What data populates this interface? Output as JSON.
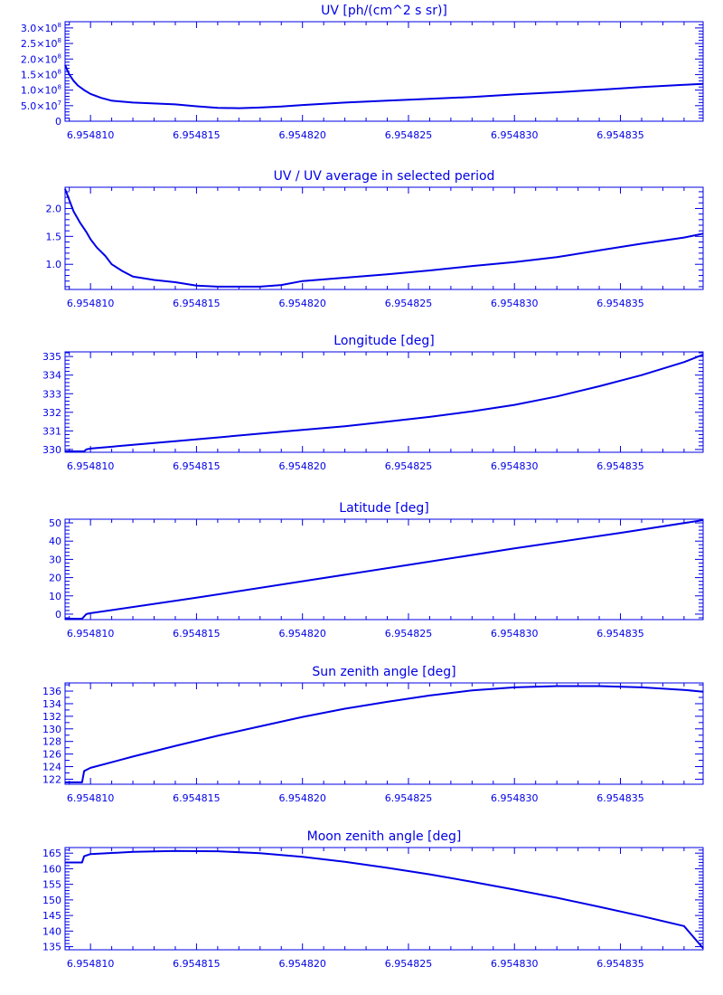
{
  "chart_data": [
    {
      "type": "line",
      "title": "UV [ph/(cm^2 s sr)]",
      "xlim": [
        6.9548088,
        6.9548389
      ],
      "ylim": [
        0,
        320000000
      ],
      "xticks": [
        6.95481,
        6.954815,
        6.95482,
        6.954825,
        6.95483,
        6.954835
      ],
      "xtick_labels": [
        "6.954810",
        "6.954815",
        "6.954820",
        "6.954825",
        "6.954830",
        "6.954835"
      ],
      "yticks": [
        0,
        50000000,
        100000000,
        150000000,
        200000000,
        250000000,
        300000000
      ],
      "ytick_labels": [
        {
          "mantissa": "0",
          "exp": ""
        },
        {
          "mantissa": "5.0×10",
          "exp": "7"
        },
        {
          "mantissa": "1.0×10",
          "exp": "8"
        },
        {
          "mantissa": "1.5×10",
          "exp": "8"
        },
        {
          "mantissa": "2.0×10",
          "exp": "8"
        },
        {
          "mantissa": "2.5×10",
          "exp": "8"
        },
        {
          "mantissa": "3.0×10",
          "exp": "8"
        }
      ],
      "minor_per_major": 5,
      "series": [
        {
          "x": [
            6.9548088,
            6.954809,
            6.9548092,
            6.9548094,
            6.9548097,
            6.95481,
            6.9548105,
            6.954811,
            6.954812,
            6.954813,
            6.954814,
            6.954815,
            6.954816,
            6.954817,
            6.954818,
            6.954819,
            6.95482,
            6.954821,
            6.954822,
            6.954824,
            6.954826,
            6.954828,
            6.95483,
            6.954832,
            6.954834,
            6.954836,
            6.954838,
            6.9548389
          ],
          "y": [
            180000000,
            150000000,
            130000000,
            115000000,
            100000000,
            88000000,
            75000000,
            66000000,
            60000000,
            57000000,
            54000000,
            48000000,
            43000000,
            42000000,
            44000000,
            47000000,
            52000000,
            56000000,
            60000000,
            66000000,
            72000000,
            78000000,
            86000000,
            93000000,
            101000000,
            110000000,
            117000000,
            120000000
          ]
        }
      ]
    },
    {
      "type": "line",
      "title": "UV / UV average in selected period",
      "xlim": [
        6.9548088,
        6.9548389
      ],
      "ylim": [
        0.55,
        2.38
      ],
      "xticks": [
        6.95481,
        6.954815,
        6.95482,
        6.954825,
        6.95483,
        6.954835
      ],
      "xtick_labels": [
        "6.954810",
        "6.954815",
        "6.954820",
        "6.954825",
        "6.954830",
        "6.954835"
      ],
      "yticks": [
        1.0,
        1.5,
        2.0
      ],
      "ytick_labels": [
        {
          "mantissa": "1.0",
          "exp": ""
        },
        {
          "mantissa": "1.5",
          "exp": ""
        },
        {
          "mantissa": "2.0",
          "exp": ""
        }
      ],
      "minor_per_major": 5,
      "series": [
        {
          "x": [
            6.9548088,
            6.954809,
            6.9548092,
            6.9548095,
            6.9548098,
            6.95481,
            6.9548103,
            6.9548107,
            6.954811,
            6.9548115,
            6.954812,
            6.954813,
            6.954814,
            6.954815,
            6.954816,
            6.954817,
            6.954818,
            6.954819,
            6.95482,
            6.954821,
            6.954822,
            6.954824,
            6.954826,
            6.954828,
            6.95483,
            6.954832,
            6.954834,
            6.954836,
            6.954838,
            6.9548389
          ],
          "y": [
            2.35,
            2.15,
            1.95,
            1.75,
            1.58,
            1.45,
            1.3,
            1.15,
            1.0,
            0.88,
            0.78,
            0.72,
            0.68,
            0.62,
            0.6,
            0.6,
            0.6,
            0.63,
            0.7,
            0.73,
            0.76,
            0.82,
            0.89,
            0.97,
            1.04,
            1.13,
            1.25,
            1.37,
            1.48,
            1.55
          ]
        }
      ]
    },
    {
      "type": "line",
      "title": "Longitude [deg]",
      "xlim": [
        6.9548088,
        6.9548389
      ],
      "ylim": [
        329.85,
        335.25
      ],
      "xticks": [
        6.95481,
        6.954815,
        6.95482,
        6.954825,
        6.95483,
        6.954835
      ],
      "xtick_labels": [
        "6.954810",
        "6.954815",
        "6.954820",
        "6.954825",
        "6.954830",
        "6.954835"
      ],
      "yticks": [
        330,
        331,
        332,
        333,
        334,
        335
      ],
      "ytick_labels": [
        {
          "mantissa": "330",
          "exp": ""
        },
        {
          "mantissa": "331",
          "exp": ""
        },
        {
          "mantissa": "332",
          "exp": ""
        },
        {
          "mantissa": "333",
          "exp": ""
        },
        {
          "mantissa": "334",
          "exp": ""
        },
        {
          "mantissa": "335",
          "exp": ""
        }
      ],
      "minor_per_major": 5,
      "series": [
        {
          "x": [
            6.9548088,
            6.9548097,
            6.9548098,
            6.95481,
            6.954812,
            6.954814,
            6.954816,
            6.954818,
            6.95482,
            6.954822,
            6.954824,
            6.954826,
            6.954828,
            6.95483,
            6.954832,
            6.954834,
            6.954836,
            6.954838,
            6.9548389
          ],
          "y": [
            329.9,
            329.9,
            330.0,
            330.05,
            330.25,
            330.45,
            330.65,
            330.85,
            331.05,
            331.25,
            331.5,
            331.75,
            332.05,
            332.4,
            332.85,
            333.4,
            334.0,
            334.7,
            335.1
          ]
        }
      ]
    },
    {
      "type": "line",
      "title": "Latitude [deg]",
      "xlim": [
        6.9548088,
        6.9548389
      ],
      "ylim": [
        -3,
        52
      ],
      "xticks": [
        6.95481,
        6.954815,
        6.95482,
        6.954825,
        6.95483,
        6.954835
      ],
      "xtick_labels": [
        "6.954810",
        "6.954815",
        "6.954820",
        "6.954825",
        "6.954830",
        "6.954835"
      ],
      "yticks": [
        0,
        10,
        20,
        30,
        40,
        50
      ],
      "ytick_labels": [
        {
          "mantissa": "0",
          "exp": ""
        },
        {
          "mantissa": "10",
          "exp": ""
        },
        {
          "mantissa": "20",
          "exp": ""
        },
        {
          "mantissa": "30",
          "exp": ""
        },
        {
          "mantissa": "40",
          "exp": ""
        },
        {
          "mantissa": "50",
          "exp": ""
        }
      ],
      "minor_per_major": 5,
      "series": [
        {
          "x": [
            6.9548088,
            6.9548096,
            6.9548098,
            6.95481,
            6.954815,
            6.95482,
            6.954825,
            6.95483,
            6.954835,
            6.9548389
          ],
          "y": [
            -2.5,
            -2.5,
            0.0,
            0.5,
            9.0,
            18.0,
            27.0,
            36.0,
            44.5,
            51.5
          ]
        }
      ]
    },
    {
      "type": "line",
      "title": "Sun zenith angle [deg]",
      "xlim": [
        6.9548088,
        6.9548389
      ],
      "ylim": [
        121.2,
        137.3
      ],
      "xticks": [
        6.95481,
        6.954815,
        6.95482,
        6.954825,
        6.95483,
        6.954835
      ],
      "xtick_labels": [
        "6.954810",
        "6.954815",
        "6.954820",
        "6.954825",
        "6.954830",
        "6.954835"
      ],
      "yticks": [
        122,
        124,
        126,
        128,
        130,
        132,
        134,
        136
      ],
      "ytick_labels": [
        {
          "mantissa": "122",
          "exp": ""
        },
        {
          "mantissa": "124",
          "exp": ""
        },
        {
          "mantissa": "126",
          "exp": ""
        },
        {
          "mantissa": "128",
          "exp": ""
        },
        {
          "mantissa": "130",
          "exp": ""
        },
        {
          "mantissa": "132",
          "exp": ""
        },
        {
          "mantissa": "134",
          "exp": ""
        },
        {
          "mantissa": "136",
          "exp": ""
        }
      ],
      "minor_per_major": 2,
      "series": [
        {
          "x": [
            6.9548088,
            6.9548096,
            6.9548097,
            6.95481,
            6.954812,
            6.954814,
            6.954816,
            6.954818,
            6.95482,
            6.954822,
            6.954824,
            6.954826,
            6.954828,
            6.95483,
            6.954832,
            6.954834,
            6.954836,
            6.954838,
            6.9548389
          ],
          "y": [
            121.5,
            121.5,
            123.3,
            123.8,
            125.6,
            127.3,
            128.9,
            130.4,
            131.9,
            133.2,
            134.3,
            135.3,
            136.1,
            136.6,
            136.8,
            136.8,
            136.6,
            136.2,
            135.9
          ]
        }
      ]
    },
    {
      "type": "line",
      "title": "Moon zenith angle [deg]",
      "xlim": [
        6.9548088,
        6.9548389
      ],
      "ylim": [
        134,
        166.8
      ],
      "xticks": [
        6.95481,
        6.954815,
        6.95482,
        6.954825,
        6.95483,
        6.954835
      ],
      "xtick_labels": [
        "6.954810",
        "6.954815",
        "6.954820",
        "6.954825",
        "6.954830",
        "6.954835"
      ],
      "yticks": [
        135,
        140,
        145,
        150,
        155,
        160,
        165
      ],
      "ytick_labels": [
        {
          "mantissa": "135",
          "exp": ""
        },
        {
          "mantissa": "140",
          "exp": ""
        },
        {
          "mantissa": "145",
          "exp": ""
        },
        {
          "mantissa": "150",
          "exp": ""
        },
        {
          "mantissa": "155",
          "exp": ""
        },
        {
          "mantissa": "160",
          "exp": ""
        },
        {
          "mantissa": "165",
          "exp": ""
        }
      ],
      "minor_per_major": 5,
      "series": [
        {
          "x": [
            6.9548088,
            6.9548096,
            6.9548097,
            6.95481,
            6.954812,
            6.954814,
            6.954816,
            6.954818,
            6.95482,
            6.954822,
            6.954824,
            6.954826,
            6.954828,
            6.95483,
            6.954832,
            6.954834,
            6.954836,
            6.954838,
            6.9548389
          ],
          "y": [
            162.0,
            162.0,
            164.0,
            164.7,
            165.4,
            165.7,
            165.6,
            165.0,
            163.8,
            162.2,
            160.3,
            158.2,
            155.8,
            153.3,
            150.7,
            147.8,
            144.8,
            141.6,
            134.5
          ]
        }
      ]
    }
  ]
}
